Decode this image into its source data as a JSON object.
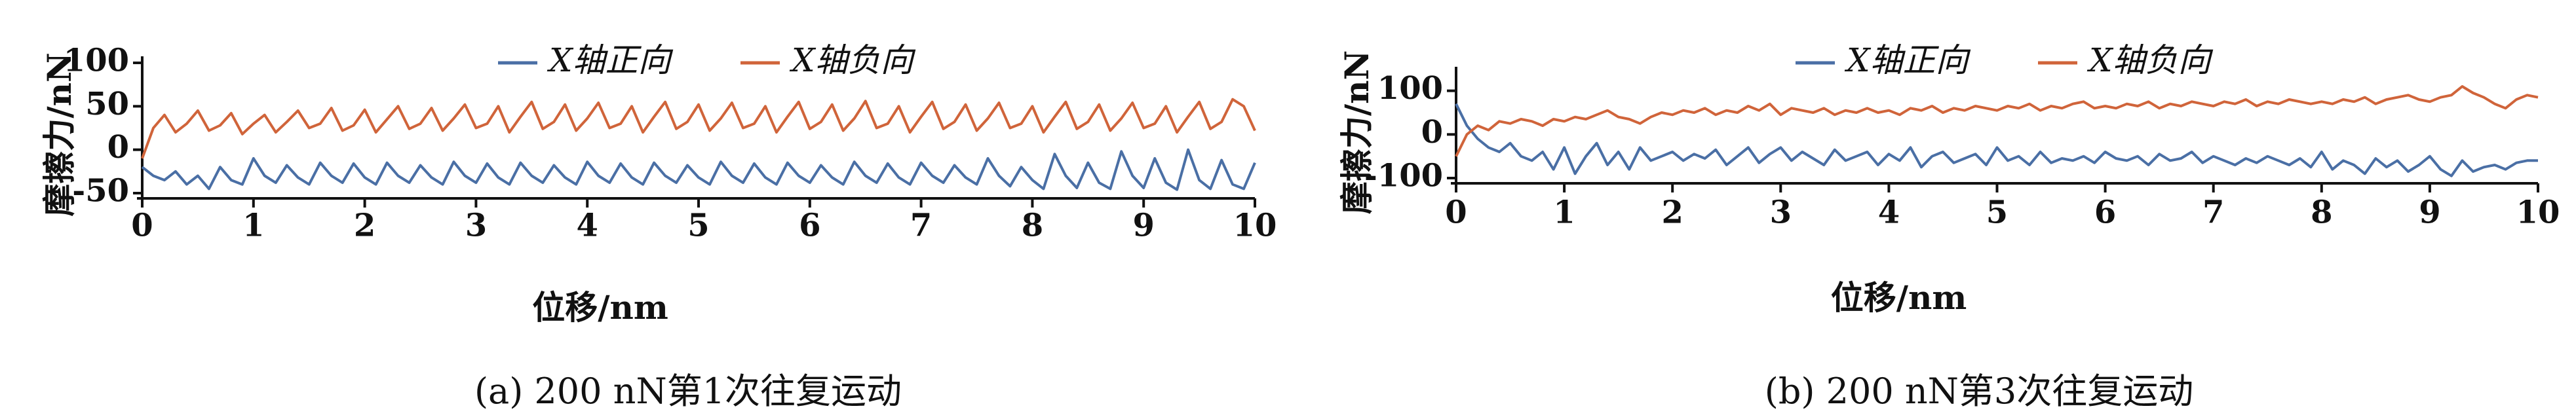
{
  "chart_data": [
    {
      "type": "line",
      "caption": "(a) 200 nN第1次往复运动",
      "xlabel": "位移/nm",
      "ylabel": "摩擦力/nN",
      "x": [
        0,
        0.1,
        0.2,
        0.3,
        0.4,
        0.5,
        0.6,
        0.7,
        0.8,
        0.9,
        1,
        1.1,
        1.2,
        1.3,
        1.4,
        1.5,
        1.6,
        1.7,
        1.8,
        1.9,
        2,
        2.1,
        2.2,
        2.3,
        2.4,
        2.5,
        2.6,
        2.7,
        2.8,
        2.9,
        3,
        3.1,
        3.2,
        3.3,
        3.4,
        3.5,
        3.6,
        3.7,
        3.8,
        3.9,
        4,
        4.1,
        4.2,
        4.3,
        4.4,
        4.5,
        4.6,
        4.7,
        4.8,
        4.9,
        5,
        5.1,
        5.2,
        5.3,
        5.4,
        5.5,
        5.6,
        5.7,
        5.8,
        5.9,
        6,
        6.1,
        6.2,
        6.3,
        6.4,
        6.5,
        6.6,
        6.7,
        6.8,
        6.9,
        7,
        7.1,
        7.2,
        7.3,
        7.4,
        7.5,
        7.6,
        7.7,
        7.8,
        7.9,
        8,
        8.1,
        8.2,
        8.3,
        8.4,
        8.5,
        8.6,
        8.7,
        8.8,
        8.9,
        9,
        9.1,
        9.2,
        9.3,
        9.4,
        9.5,
        9.6,
        9.7,
        9.8,
        9.9,
        10
      ],
      "series": [
        {
          "name": "X轴正向",
          "color": "#4a6fa5",
          "values": [
            -20,
            -30,
            -35,
            -25,
            -40,
            -30,
            -45,
            -20,
            -35,
            -40,
            -10,
            -30,
            -38,
            -18,
            -32,
            -40,
            -15,
            -30,
            -38,
            -16,
            -32,
            -40,
            -15,
            -30,
            -38,
            -18,
            -32,
            -40,
            -14,
            -30,
            -38,
            -16,
            -32,
            -40,
            -15,
            -30,
            -38,
            -18,
            -32,
            -40,
            -14,
            -30,
            -38,
            -16,
            -32,
            -40,
            -15,
            -30,
            -38,
            -18,
            -32,
            -40,
            -14,
            -30,
            -38,
            -16,
            -32,
            -40,
            -15,
            -30,
            -38,
            -18,
            -32,
            -40,
            -14,
            -30,
            -38,
            -16,
            -32,
            -40,
            -15,
            -30,
            -38,
            -18,
            -32,
            -40,
            -10,
            -30,
            -42,
            -20,
            -35,
            -45,
            -5,
            -30,
            -44,
            -15,
            -38,
            -45,
            -2,
            -30,
            -44,
            -10,
            -38,
            -46,
            0,
            -35,
            -45,
            -12,
            -40,
            -45,
            -15
          ]
        },
        {
          "name": "X轴负向",
          "color": "#d0643a",
          "values": [
            -10,
            25,
            40,
            20,
            30,
            45,
            22,
            28,
            42,
            18,
            30,
            40,
            20,
            32,
            45,
            25,
            30,
            48,
            22,
            28,
            46,
            20,
            35,
            50,
            24,
            30,
            48,
            22,
            36,
            52,
            25,
            30,
            50,
            20,
            38,
            55,
            24,
            32,
            52,
            22,
            36,
            54,
            25,
            30,
            50,
            20,
            38,
            55,
            24,
            32,
            52,
            22,
            36,
            54,
            25,
            30,
            50,
            20,
            38,
            55,
            24,
            32,
            52,
            22,
            36,
            56,
            25,
            30,
            50,
            20,
            38,
            55,
            24,
            32,
            52,
            22,
            36,
            54,
            25,
            30,
            50,
            20,
            38,
            55,
            24,
            32,
            52,
            22,
            36,
            54,
            25,
            30,
            50,
            20,
            38,
            55,
            24,
            32,
            58,
            50,
            22
          ]
        }
      ],
      "xlim": [
        0,
        10
      ],
      "xticks": [
        0,
        1,
        2,
        3,
        4,
        5,
        6,
        7,
        8,
        9,
        10
      ],
      "ylim": [
        -50,
        100
      ],
      "yticks": [
        -50,
        0,
        50,
        100
      ]
    },
    {
      "type": "line",
      "caption": "(b) 200 nN第3次往复运动",
      "xlabel": "位移/nm",
      "ylabel": "摩擦力/nN",
      "x": [
        0,
        0.1,
        0.2,
        0.3,
        0.4,
        0.5,
        0.6,
        0.7,
        0.8,
        0.9,
        1,
        1.1,
        1.2,
        1.3,
        1.4,
        1.5,
        1.6,
        1.7,
        1.8,
        1.9,
        2,
        2.1,
        2.2,
        2.3,
        2.4,
        2.5,
        2.6,
        2.7,
        2.8,
        2.9,
        3,
        3.1,
        3.2,
        3.3,
        3.4,
        3.5,
        3.6,
        3.7,
        3.8,
        3.9,
        4,
        4.1,
        4.2,
        4.3,
        4.4,
        4.5,
        4.6,
        4.7,
        4.8,
        4.9,
        5,
        5.1,
        5.2,
        5.3,
        5.4,
        5.5,
        5.6,
        5.7,
        5.8,
        5.9,
        6,
        6.1,
        6.2,
        6.3,
        6.4,
        6.5,
        6.6,
        6.7,
        6.8,
        6.9,
        7,
        7.1,
        7.2,
        7.3,
        7.4,
        7.5,
        7.6,
        7.7,
        7.8,
        7.9,
        8,
        8.1,
        8.2,
        8.3,
        8.4,
        8.5,
        8.6,
        8.7,
        8.8,
        8.9,
        9,
        9.1,
        9.2,
        9.3,
        9.4,
        9.5,
        9.6,
        9.7,
        9.8,
        9.9,
        10
      ],
      "series": [
        {
          "name": "X轴正向",
          "color": "#4a6fa5",
          "values": [
            70,
            20,
            -10,
            -30,
            -40,
            -20,
            -50,
            -60,
            -40,
            -80,
            -30,
            -90,
            -50,
            -20,
            -70,
            -40,
            -80,
            -30,
            -60,
            -50,
            -40,
            -60,
            -45,
            -55,
            -35,
            -70,
            -50,
            -30,
            -65,
            -45,
            -30,
            -60,
            -40,
            -55,
            -70,
            -35,
            -60,
            -50,
            -40,
            -70,
            -45,
            -60,
            -30,
            -75,
            -50,
            -40,
            -65,
            -55,
            -45,
            -70,
            -30,
            -60,
            -50,
            -70,
            -40,
            -65,
            -55,
            -60,
            -50,
            -65,
            -40,
            -55,
            -60,
            -50,
            -70,
            -45,
            -60,
            -55,
            -40,
            -65,
            -50,
            -60,
            -70,
            -55,
            -65,
            -50,
            -60,
            -70,
            -55,
            -75,
            -40,
            -80,
            -60,
            -70,
            -90,
            -55,
            -75,
            -60,
            -85,
            -70,
            -50,
            -80,
            -95,
            -60,
            -85,
            -75,
            -70,
            -80,
            -65,
            -60,
            -60
          ]
        },
        {
          "name": "X轴负向",
          "color": "#d0643a",
          "values": [
            -50,
            0,
            20,
            10,
            30,
            25,
            35,
            30,
            20,
            35,
            30,
            40,
            35,
            45,
            55,
            40,
            35,
            25,
            40,
            50,
            45,
            55,
            50,
            60,
            45,
            55,
            50,
            65,
            55,
            70,
            45,
            60,
            55,
            50,
            60,
            45,
            55,
            50,
            60,
            50,
            55,
            45,
            60,
            55,
            65,
            50,
            60,
            55,
            65,
            60,
            55,
            65,
            60,
            70,
            55,
            65,
            60,
            70,
            75,
            60,
            65,
            60,
            70,
            65,
            75,
            60,
            70,
            65,
            75,
            70,
            65,
            75,
            70,
            80,
            65,
            75,
            70,
            80,
            75,
            70,
            75,
            70,
            80,
            75,
            85,
            70,
            80,
            85,
            90,
            80,
            75,
            85,
            90,
            110,
            95,
            85,
            70,
            60,
            80,
            90,
            85
          ]
        }
      ],
      "xlim": [
        0,
        10
      ],
      "xticks": [
        0,
        1,
        2,
        3,
        4,
        5,
        6,
        7,
        8,
        9,
        10
      ],
      "ylim": [
        -100,
        140
      ],
      "yticks": [
        -100,
        0,
        100
      ]
    }
  ]
}
